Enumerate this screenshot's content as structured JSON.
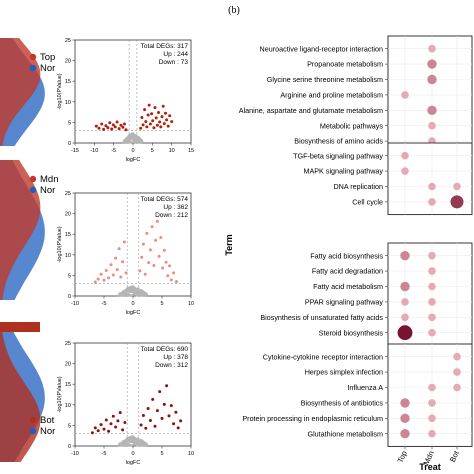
{
  "panel_label": "(b)",
  "chart_data": [
    {
      "type": "area",
      "legend": [
        {
          "name": "Top",
          "color": "#c0392b"
        },
        {
          "name": "Nor",
          "color": "#1f5fbf"
        }
      ]
    },
    {
      "type": "scatter",
      "xlabel": "logFC",
      "ylabel": "-log10(PValue)",
      "xlim": [
        -15,
        15
      ],
      "ylim": [
        0,
        25
      ],
      "xticks": [
        -15,
        -10,
        -5,
        0,
        5,
        10,
        15
      ],
      "yticks": [
        0,
        5,
        10,
        15,
        20,
        25
      ],
      "stats": [
        "Total DEGs: 317",
        "Up : 244",
        "Down : 73"
      ],
      "colors": {
        "sig": "#b22010",
        "ns": "#b5b5b5"
      },
      "points": [
        [
          -9.5,
          4.1
        ],
        [
          -8.8,
          3.6
        ],
        [
          -8.1,
          4.6
        ],
        [
          -7.6,
          3.3
        ],
        [
          -7,
          4.2
        ],
        [
          -6.5,
          3.7
        ],
        [
          -6,
          4.9
        ],
        [
          -5.5,
          3.4
        ],
        [
          -5.1,
          4.4
        ],
        [
          -4.6,
          3.9
        ],
        [
          -4.1,
          5.1
        ],
        [
          -3.6,
          3.5
        ],
        [
          -3.1,
          4.3
        ],
        [
          -2.6,
          3.8
        ],
        [
          -2.2,
          4.6
        ],
        [
          -1.8,
          3.2
        ],
        [
          2,
          3.6
        ],
        [
          2.3,
          6.2
        ],
        [
          2.6,
          4.4
        ],
        [
          3,
          8.1
        ],
        [
          3.3,
          5.2
        ],
        [
          3.6,
          3.9
        ],
        [
          3.9,
          6.8
        ],
        [
          4.2,
          9.2
        ],
        [
          4.5,
          4.6
        ],
        [
          4.8,
          7.1
        ],
        [
          5.1,
          5.4
        ],
        [
          5.4,
          3.7
        ],
        [
          5.7,
          8.6
        ],
        [
          6,
          6.1
        ],
        [
          6.3,
          4.3
        ],
        [
          6.6,
          7.4
        ],
        [
          6.9,
          5.1
        ],
        [
          7.2,
          3.9
        ],
        [
          7.5,
          6.4
        ],
        [
          7.8,
          8.9
        ],
        [
          8.1,
          4.7
        ],
        [
          8.4,
          7.2
        ],
        [
          8.7,
          5.6
        ],
        [
          9.1,
          4.1
        ],
        [
          9.5,
          6.6
        ],
        [
          10,
          5.2
        ]
      ]
    },
    {
      "type": "area",
      "legend": [
        {
          "name": "Mdn",
          "color": "#c0392b"
        },
        {
          "name": "Nor",
          "color": "#1f5fbf"
        }
      ]
    },
    {
      "type": "scatter",
      "xlabel": "logFC",
      "ylabel": "-log10(PValue)",
      "xlim": [
        -10,
        10
      ],
      "ylim": [
        0,
        25
      ],
      "xticks": [
        -10,
        -5,
        0,
        5,
        10
      ],
      "yticks": [
        0,
        5,
        10,
        15,
        20,
        25
      ],
      "stats": [
        "Total DEGs: 574",
        "Up : 362",
        "Down : 212"
      ],
      "colors": {
        "sig": "#f08a80",
        "ns": "#b5b5b5"
      },
      "points": [
        [
          -6.5,
          3.4
        ],
        [
          -6,
          4.1
        ],
        [
          -5.5,
          5.3
        ],
        [
          -5,
          3.8
        ],
        [
          -4.6,
          6.2
        ],
        [
          -4.2,
          4.4
        ],
        [
          -3.8,
          7.6
        ],
        [
          -3.4,
          5.1
        ],
        [
          -3,
          9.2
        ],
        [
          -2.7,
          6.4
        ],
        [
          -2.4,
          11.5
        ],
        [
          -2.1,
          4.6
        ],
        [
          -1.8,
          8.3
        ],
        [
          -1.5,
          13.1
        ],
        [
          -1.2,
          5.6
        ],
        [
          1.2,
          6.1
        ],
        [
          1.5,
          9.4
        ],
        [
          1.8,
          12.6
        ],
        [
          2.1,
          5.3
        ],
        [
          2.4,
          15.2
        ],
        [
          2.7,
          8.1
        ],
        [
          3,
          11.2
        ],
        [
          3.3,
          16.8
        ],
        [
          3.6,
          7.4
        ],
        [
          3.9,
          13.5
        ],
        [
          4.2,
          18.1
        ],
        [
          4.5,
          9.6
        ],
        [
          4.8,
          14.2
        ],
        [
          5.1,
          6.8
        ],
        [
          5.4,
          11.1
        ],
        [
          5.7,
          8.2
        ],
        [
          6,
          4.9
        ],
        [
          6.3,
          7.3
        ],
        [
          6.6,
          3.9
        ],
        [
          7,
          5.6
        ],
        [
          7.5,
          3.5
        ]
      ]
    },
    {
      "type": "area",
      "legend": [
        {
          "name": "Bot",
          "color": "#b03020"
        },
        {
          "name": "Nor",
          "color": "#1f5fbf"
        }
      ]
    },
    {
      "type": "scatter",
      "xlabel": "logFC",
      "ylabel": "-log10(PValue)",
      "xlim": [
        -10,
        10
      ],
      "ylim": [
        0,
        25
      ],
      "xticks": [
        -10,
        -5,
        0,
        5,
        10
      ],
      "yticks": [
        0,
        5,
        10,
        15,
        20,
        25
      ],
      "stats": [
        "Total DEGs: 690",
        "Up : 378",
        "Down : 312"
      ],
      "colors": {
        "sig": "#8b1010",
        "ns": "#b5b5b5"
      },
      "points": [
        [
          -7,
          3.2
        ],
        [
          -6.5,
          4.4
        ],
        [
          -6,
          3.7
        ],
        [
          -5.5,
          5.2
        ],
        [
          -5,
          4.1
        ],
        [
          -4.6,
          6.3
        ],
        [
          -4.2,
          3.6
        ],
        [
          -3.8,
          5.4
        ],
        [
          -3.4,
          7.2
        ],
        [
          -3,
          4.6
        ],
        [
          -2.6,
          6.1
        ],
        [
          -2.2,
          8.1
        ],
        [
          -1.8,
          3.9
        ],
        [
          -1.4,
          5.7
        ],
        [
          1.4,
          5.1
        ],
        [
          1.8,
          7.4
        ],
        [
          2.2,
          4.3
        ],
        [
          2.6,
          9.1
        ],
        [
          3,
          6.2
        ],
        [
          3.4,
          11.3
        ],
        [
          3.8,
          4.8
        ],
        [
          4.2,
          8.6
        ],
        [
          4.6,
          13.2
        ],
        [
          5,
          6.7
        ],
        [
          5.4,
          10.1
        ],
        [
          5.8,
          14.6
        ],
        [
          6.2,
          7.3
        ],
        [
          6.6,
          9.8
        ],
        [
          7,
          5.4
        ],
        [
          7.4,
          8.2
        ],
        [
          7.8,
          4.4
        ],
        [
          8.2,
          6.1
        ]
      ]
    },
    {
      "type": "scatter",
      "chart_kind": "dot-plot",
      "ylabel": "Term",
      "xlabel": "Treat",
      "x": [
        "Top",
        "Mdn",
        "Bot"
      ],
      "groups": [
        {
          "terms": [
            {
              "label": "Neuroactive ligand-receptor interaction",
              "values": [
                null,
                2,
                null
              ]
            },
            {
              "label": "Propanoate metabolism",
              "values": [
                null,
                3,
                null
              ]
            },
            {
              "label": "Glycine serine threonine metabolism",
              "values": [
                null,
                3,
                null
              ]
            },
            {
              "label": "Arginine and proline metabolism",
              "values": [
                2,
                null,
                null
              ]
            },
            {
              "label": "Alanine, aspartate and glutamate metabolism",
              "values": [
                null,
                3,
                null
              ]
            },
            {
              "label": "Metabolic pathways",
              "values": [
                null,
                2,
                null
              ]
            },
            {
              "label": "Biosynthesis of amino acids",
              "values": [
                null,
                2,
                null
              ]
            }
          ]
        },
        {
          "terms": [
            {
              "label": "TGF-beta signaling pathway",
              "values": [
                2,
                null,
                null
              ]
            },
            {
              "label": "MAPK signaling pathway",
              "values": [
                2,
                null,
                null
              ]
            },
            {
              "label": "DNA replication",
              "values": [
                null,
                2,
                2
              ]
            },
            {
              "label": "Cell cycle",
              "values": [
                null,
                2,
                5
              ]
            }
          ]
        },
        {
          "terms": [
            {
              "label": "Fatty acid biosynthesis",
              "values": [
                3,
                2,
                null
              ]
            },
            {
              "label": "Fatty acid degradation",
              "values": [
                null,
                2,
                null
              ]
            },
            {
              "label": "Fatty acid metabolism",
              "values": [
                3,
                2,
                null
              ]
            },
            {
              "label": "PPAR signaling pathway",
              "values": [
                2,
                2,
                null
              ]
            },
            {
              "label": "Biosynthesis of unsaturated fatty acids",
              "values": [
                2,
                2,
                null
              ]
            },
            {
              "label": "Steroid biosynthesis",
              "values": [
                6,
                2,
                null
              ]
            }
          ]
        },
        {
          "terms": [
            {
              "label": "Cytokine-cytokine receptor interaction",
              "values": [
                null,
                null,
                2
              ]
            },
            {
              "label": "Herpes simplex infection",
              "values": [
                null,
                null,
                2
              ]
            },
            {
              "label": "Influenza A",
              "values": [
                null,
                2,
                2
              ]
            },
            {
              "label": "Biosynthesis of antibiotics",
              "values": [
                3,
                2,
                null
              ]
            },
            {
              "label": "Protein processing in endoplasmic reticulum",
              "values": [
                3,
                2,
                null
              ]
            },
            {
              "label": "Glutathione metabolism",
              "values": [
                3,
                2,
                null
              ]
            }
          ]
        }
      ]
    }
  ]
}
